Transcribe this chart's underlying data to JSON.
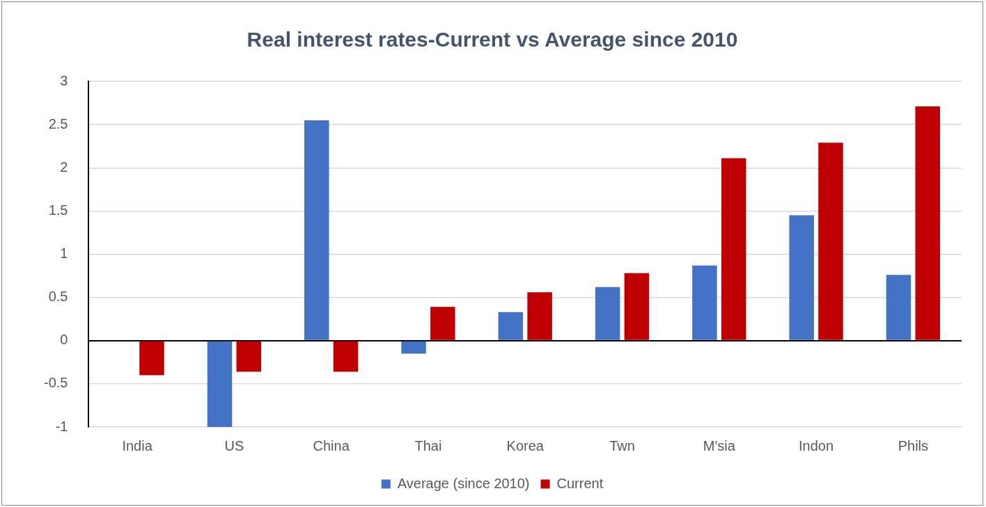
{
  "chart_data": {
    "type": "bar",
    "title": "Real interest rates-Current vs Average since 2010",
    "categories": [
      "India",
      "US",
      "China",
      "Thai",
      "Korea",
      "Twn",
      "M'sia",
      "Indon",
      "Phils"
    ],
    "series": [
      {
        "name": "Average (since 2010)",
        "color": "#4472c4",
        "values": [
          0,
          -1,
          2.55,
          -0.15,
          0.33,
          0.62,
          0.87,
          1.45,
          0.76
        ]
      },
      {
        "name": "Current",
        "color": "#c00000",
        "values": [
          -0.4,
          -0.36,
          -0.36,
          0.39,
          0.56,
          0.78,
          2.11,
          2.29,
          2.71
        ]
      }
    ],
    "ylim": [
      -1,
      3
    ],
    "yticks": [
      -1,
      -0.5,
      0,
      0.5,
      1,
      1.5,
      2,
      2.5,
      3
    ],
    "grid": "y",
    "legend": "bottom"
  }
}
